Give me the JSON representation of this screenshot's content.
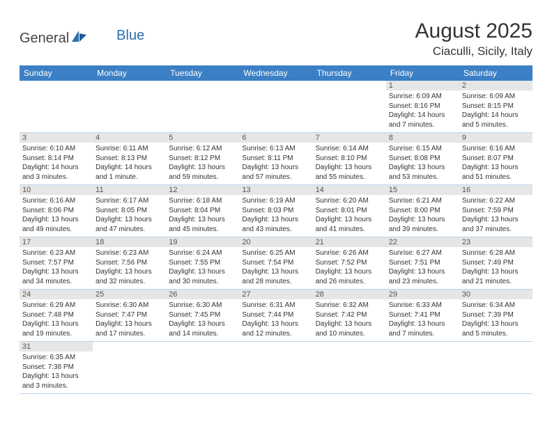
{
  "logo": {
    "text1": "General",
    "text2": "Blue"
  },
  "title": "August 2025",
  "location": "Ciaculli, Sicily, Italy",
  "colors": {
    "header_bg": "#3b7fc4",
    "header_text": "#ffffff",
    "daynum_bg": "#e6e6e6",
    "week_border": "#bcd3e8",
    "logo_blue": "#2b6fb0"
  },
  "weekdays": [
    "Sunday",
    "Monday",
    "Tuesday",
    "Wednesday",
    "Thursday",
    "Friday",
    "Saturday"
  ],
  "weeks": [
    [
      {
        "n": "",
        "sr": "",
        "ss": "",
        "dl": ""
      },
      {
        "n": "",
        "sr": "",
        "ss": "",
        "dl": ""
      },
      {
        "n": "",
        "sr": "",
        "ss": "",
        "dl": ""
      },
      {
        "n": "",
        "sr": "",
        "ss": "",
        "dl": ""
      },
      {
        "n": "",
        "sr": "",
        "ss": "",
        "dl": ""
      },
      {
        "n": "1",
        "sr": "Sunrise: 6:09 AM",
        "ss": "Sunset: 8:16 PM",
        "dl": "Daylight: 14 hours and 7 minutes."
      },
      {
        "n": "2",
        "sr": "Sunrise: 6:09 AM",
        "ss": "Sunset: 8:15 PM",
        "dl": "Daylight: 14 hours and 5 minutes."
      }
    ],
    [
      {
        "n": "3",
        "sr": "Sunrise: 6:10 AM",
        "ss": "Sunset: 8:14 PM",
        "dl": "Daylight: 14 hours and 3 minutes."
      },
      {
        "n": "4",
        "sr": "Sunrise: 6:11 AM",
        "ss": "Sunset: 8:13 PM",
        "dl": "Daylight: 14 hours and 1 minute."
      },
      {
        "n": "5",
        "sr": "Sunrise: 6:12 AM",
        "ss": "Sunset: 8:12 PM",
        "dl": "Daylight: 13 hours and 59 minutes."
      },
      {
        "n": "6",
        "sr": "Sunrise: 6:13 AM",
        "ss": "Sunset: 8:11 PM",
        "dl": "Daylight: 13 hours and 57 minutes."
      },
      {
        "n": "7",
        "sr": "Sunrise: 6:14 AM",
        "ss": "Sunset: 8:10 PM",
        "dl": "Daylight: 13 hours and 55 minutes."
      },
      {
        "n": "8",
        "sr": "Sunrise: 6:15 AM",
        "ss": "Sunset: 8:08 PM",
        "dl": "Daylight: 13 hours and 53 minutes."
      },
      {
        "n": "9",
        "sr": "Sunrise: 6:16 AM",
        "ss": "Sunset: 8:07 PM",
        "dl": "Daylight: 13 hours and 51 minutes."
      }
    ],
    [
      {
        "n": "10",
        "sr": "Sunrise: 6:16 AM",
        "ss": "Sunset: 8:06 PM",
        "dl": "Daylight: 13 hours and 49 minutes."
      },
      {
        "n": "11",
        "sr": "Sunrise: 6:17 AM",
        "ss": "Sunset: 8:05 PM",
        "dl": "Daylight: 13 hours and 47 minutes."
      },
      {
        "n": "12",
        "sr": "Sunrise: 6:18 AM",
        "ss": "Sunset: 8:04 PM",
        "dl": "Daylight: 13 hours and 45 minutes."
      },
      {
        "n": "13",
        "sr": "Sunrise: 6:19 AM",
        "ss": "Sunset: 8:03 PM",
        "dl": "Daylight: 13 hours and 43 minutes."
      },
      {
        "n": "14",
        "sr": "Sunrise: 6:20 AM",
        "ss": "Sunset: 8:01 PM",
        "dl": "Daylight: 13 hours and 41 minutes."
      },
      {
        "n": "15",
        "sr": "Sunrise: 6:21 AM",
        "ss": "Sunset: 8:00 PM",
        "dl": "Daylight: 13 hours and 39 minutes."
      },
      {
        "n": "16",
        "sr": "Sunrise: 6:22 AM",
        "ss": "Sunset: 7:59 PM",
        "dl": "Daylight: 13 hours and 37 minutes."
      }
    ],
    [
      {
        "n": "17",
        "sr": "Sunrise: 6:23 AM",
        "ss": "Sunset: 7:57 PM",
        "dl": "Daylight: 13 hours and 34 minutes."
      },
      {
        "n": "18",
        "sr": "Sunrise: 6:23 AM",
        "ss": "Sunset: 7:56 PM",
        "dl": "Daylight: 13 hours and 32 minutes."
      },
      {
        "n": "19",
        "sr": "Sunrise: 6:24 AM",
        "ss": "Sunset: 7:55 PM",
        "dl": "Daylight: 13 hours and 30 minutes."
      },
      {
        "n": "20",
        "sr": "Sunrise: 6:25 AM",
        "ss": "Sunset: 7:54 PM",
        "dl": "Daylight: 13 hours and 28 minutes."
      },
      {
        "n": "21",
        "sr": "Sunrise: 6:26 AM",
        "ss": "Sunset: 7:52 PM",
        "dl": "Daylight: 13 hours and 26 minutes."
      },
      {
        "n": "22",
        "sr": "Sunrise: 6:27 AM",
        "ss": "Sunset: 7:51 PM",
        "dl": "Daylight: 13 hours and 23 minutes."
      },
      {
        "n": "23",
        "sr": "Sunrise: 6:28 AM",
        "ss": "Sunset: 7:49 PM",
        "dl": "Daylight: 13 hours and 21 minutes."
      }
    ],
    [
      {
        "n": "24",
        "sr": "Sunrise: 6:29 AM",
        "ss": "Sunset: 7:48 PM",
        "dl": "Daylight: 13 hours and 19 minutes."
      },
      {
        "n": "25",
        "sr": "Sunrise: 6:30 AM",
        "ss": "Sunset: 7:47 PM",
        "dl": "Daylight: 13 hours and 17 minutes."
      },
      {
        "n": "26",
        "sr": "Sunrise: 6:30 AM",
        "ss": "Sunset: 7:45 PM",
        "dl": "Daylight: 13 hours and 14 minutes."
      },
      {
        "n": "27",
        "sr": "Sunrise: 6:31 AM",
        "ss": "Sunset: 7:44 PM",
        "dl": "Daylight: 13 hours and 12 minutes."
      },
      {
        "n": "28",
        "sr": "Sunrise: 6:32 AM",
        "ss": "Sunset: 7:42 PM",
        "dl": "Daylight: 13 hours and 10 minutes."
      },
      {
        "n": "29",
        "sr": "Sunrise: 6:33 AM",
        "ss": "Sunset: 7:41 PM",
        "dl": "Daylight: 13 hours and 7 minutes."
      },
      {
        "n": "30",
        "sr": "Sunrise: 6:34 AM",
        "ss": "Sunset: 7:39 PM",
        "dl": "Daylight: 13 hours and 5 minutes."
      }
    ],
    [
      {
        "n": "31",
        "sr": "Sunrise: 6:35 AM",
        "ss": "Sunset: 7:38 PM",
        "dl": "Daylight: 13 hours and 3 minutes."
      },
      {
        "n": "",
        "sr": "",
        "ss": "",
        "dl": ""
      },
      {
        "n": "",
        "sr": "",
        "ss": "",
        "dl": ""
      },
      {
        "n": "",
        "sr": "",
        "ss": "",
        "dl": ""
      },
      {
        "n": "",
        "sr": "",
        "ss": "",
        "dl": ""
      },
      {
        "n": "",
        "sr": "",
        "ss": "",
        "dl": ""
      },
      {
        "n": "",
        "sr": "",
        "ss": "",
        "dl": ""
      }
    ]
  ]
}
